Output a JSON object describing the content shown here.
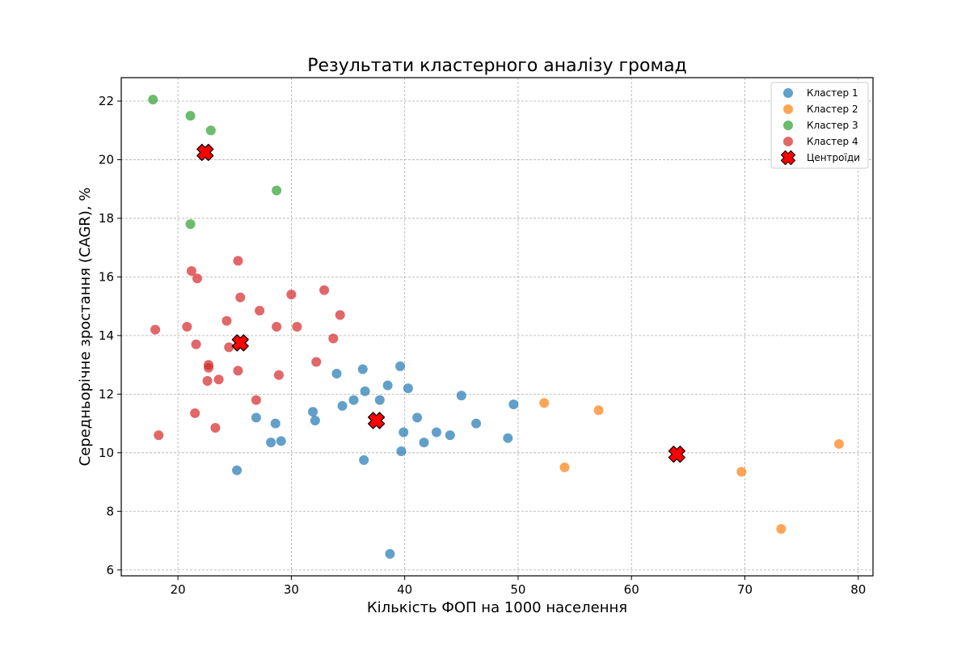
{
  "chart_data": {
    "type": "scatter",
    "title": "Результати кластерного аналізу громад",
    "xlabel": "Кількість ФОП на 1000 населення",
    "ylabel": "Середньорічне зростання (CAGR), %",
    "xlim": [
      15,
      81.3
    ],
    "ylim": [
      5.8,
      22.8
    ],
    "xticks": [
      20,
      30,
      40,
      50,
      60,
      70,
      80
    ],
    "yticks": [
      6,
      8,
      10,
      12,
      14,
      16,
      18,
      20,
      22
    ],
    "grid": true,
    "legend_position": "top-right",
    "series": [
      {
        "name": "Кластер 1",
        "color": "#1f77b4",
        "points": [
          [
            25.2,
            9.4
          ],
          [
            26.9,
            11.2
          ],
          [
            28.2,
            10.35
          ],
          [
            28.6,
            11.0
          ],
          [
            29.1,
            10.4
          ],
          [
            31.9,
            11.4
          ],
          [
            32.1,
            11.1
          ],
          [
            34.0,
            12.7
          ],
          [
            34.5,
            11.6
          ],
          [
            35.5,
            11.8
          ],
          [
            36.3,
            12.85
          ],
          [
            36.4,
            9.75
          ],
          [
            36.5,
            12.1
          ],
          [
            37.8,
            11.8
          ],
          [
            38.5,
            12.3
          ],
          [
            38.7,
            6.55
          ],
          [
            39.6,
            12.95
          ],
          [
            39.7,
            10.05
          ],
          [
            39.9,
            10.7
          ],
          [
            40.3,
            12.2
          ],
          [
            41.1,
            11.2
          ],
          [
            41.7,
            10.35
          ],
          [
            42.8,
            10.7
          ],
          [
            44.0,
            10.6
          ],
          [
            45.0,
            11.95
          ],
          [
            46.3,
            11.0
          ],
          [
            49.1,
            10.5
          ],
          [
            49.6,
            11.65
          ]
        ]
      },
      {
        "name": "Кластер 2",
        "color": "#ff7f0e",
        "points": [
          [
            52.3,
            11.7
          ],
          [
            54.1,
            9.5
          ],
          [
            57.1,
            11.45
          ],
          [
            69.7,
            9.35
          ],
          [
            73.2,
            7.4
          ],
          [
            78.3,
            10.3
          ]
        ]
      },
      {
        "name": "Кластер 3",
        "color": "#2ca02c",
        "points": [
          [
            17.8,
            22.05
          ],
          [
            21.1,
            21.5
          ],
          [
            22.9,
            21.0
          ],
          [
            28.7,
            18.95
          ],
          [
            21.1,
            17.8
          ]
        ]
      },
      {
        "name": "Кластер 4",
        "color": "#d62728",
        "points": [
          [
            18.0,
            14.2
          ],
          [
            18.3,
            10.6
          ],
          [
            20.8,
            14.3
          ],
          [
            21.2,
            16.2
          ],
          [
            21.5,
            11.35
          ],
          [
            21.6,
            13.7
          ],
          [
            21.7,
            15.95
          ],
          [
            22.6,
            12.45
          ],
          [
            22.7,
            13.0
          ],
          [
            22.7,
            12.9
          ],
          [
            23.3,
            10.85
          ],
          [
            23.6,
            12.5
          ],
          [
            24.3,
            14.5
          ],
          [
            24.5,
            13.6
          ],
          [
            25.3,
            12.8
          ],
          [
            25.3,
            16.55
          ],
          [
            25.5,
            15.3
          ],
          [
            26.9,
            11.8
          ],
          [
            27.2,
            14.85
          ],
          [
            28.7,
            14.3
          ],
          [
            28.9,
            12.65
          ],
          [
            30.0,
            15.4
          ],
          [
            30.5,
            14.3
          ],
          [
            32.2,
            13.1
          ],
          [
            32.9,
            15.55
          ],
          [
            33.7,
            13.9
          ],
          [
            34.3,
            14.7
          ]
        ]
      }
    ],
    "centroids": {
      "name": "Центроїди",
      "color": "#ff0000",
      "points": [
        [
          22.4,
          20.25
        ],
        [
          25.5,
          13.75
        ],
        [
          37.5,
          11.1
        ],
        [
          64.0,
          9.95
        ]
      ]
    }
  }
}
